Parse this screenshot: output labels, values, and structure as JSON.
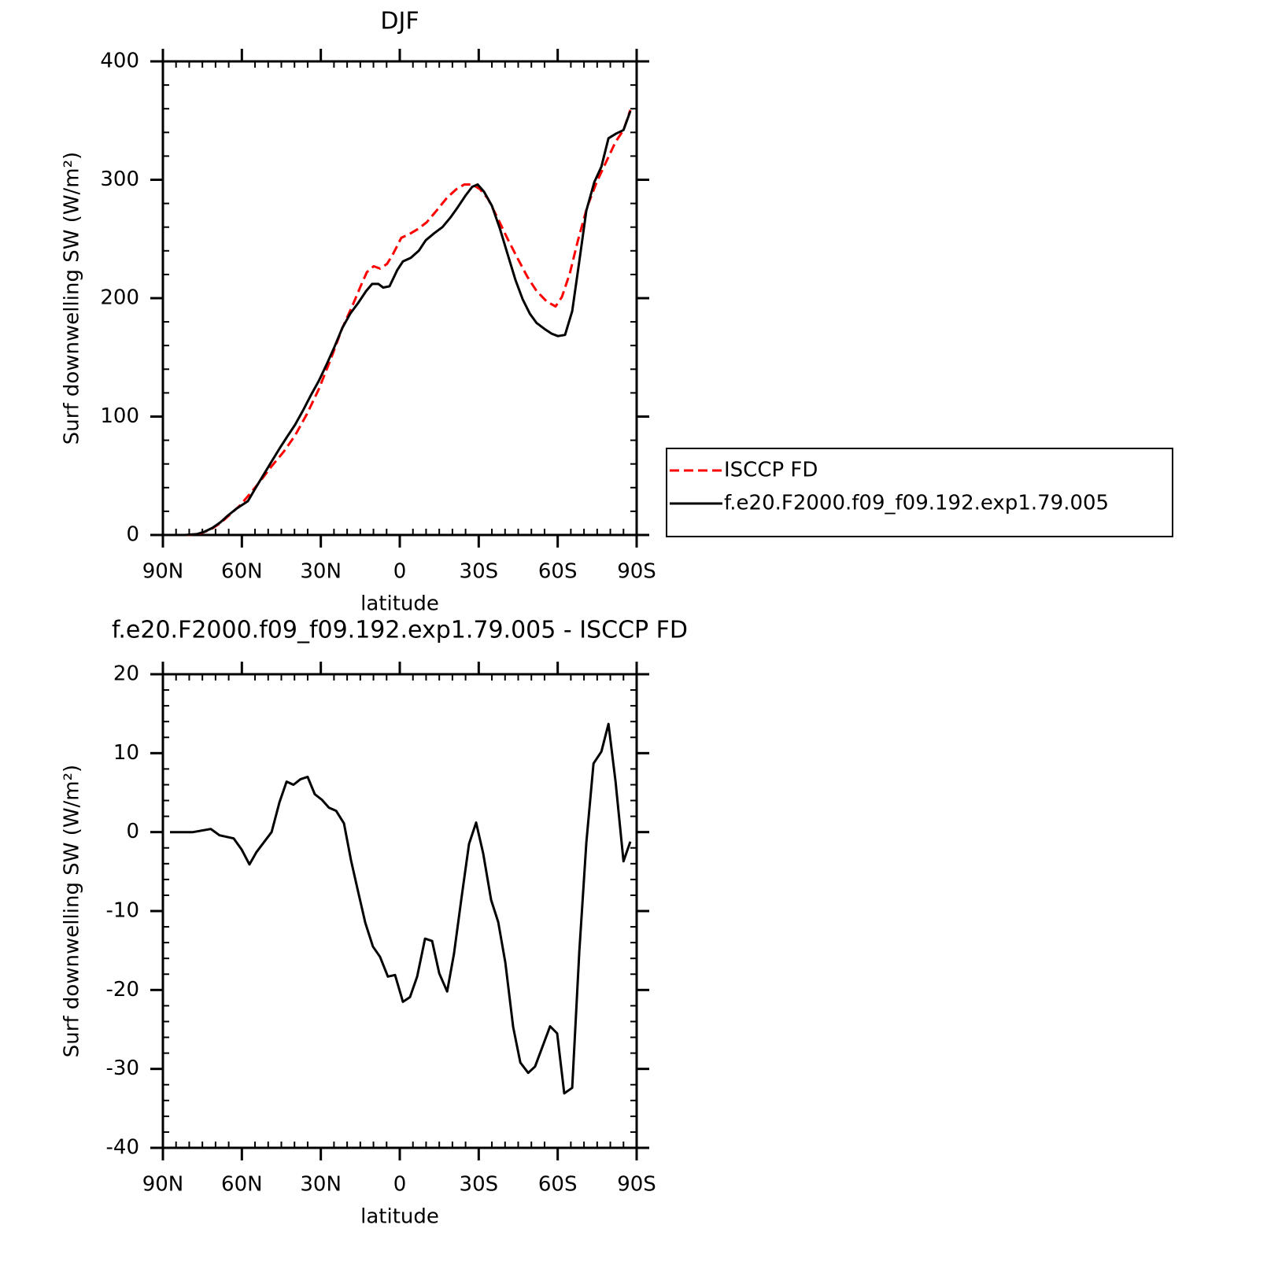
{
  "chart_data": [
    {
      "type": "line",
      "title": "DJF",
      "xlabel": "latitude",
      "ylabel": "Surf downwelling SW (W/m²)",
      "xlim": [
        90,
        -90
      ],
      "xticks": [
        {
          "value": 90,
          "label": "90N"
        },
        {
          "value": 60,
          "label": "60N"
        },
        {
          "value": 30,
          "label": "30N"
        },
        0,
        {
          "value": -30,
          "label": "30S"
        },
        {
          "value": -60,
          "label": "60S"
        },
        {
          "value": -90,
          "label": "90S"
        }
      ],
      "xminor": [
        85,
        80,
        75,
        70,
        65,
        55,
        50,
        45,
        40,
        35,
        25,
        20,
        15,
        10,
        5,
        -5,
        -10,
        -15,
        -20,
        -25,
        -35,
        -40,
        -45,
        -50,
        -55,
        -65,
        -70,
        -75,
        -80,
        -85
      ],
      "ylim": [
        0,
        400
      ],
      "yticks": [
        0,
        100,
        200,
        300,
        400
      ],
      "yminor": [
        20,
        40,
        60,
        80,
        120,
        140,
        160,
        180,
        220,
        240,
        260,
        280,
        320,
        340,
        360,
        380
      ],
      "legend": "right",
      "series": [
        {
          "name": "ISCCP FD",
          "color": "#ff0000",
          "linestyle": "dashed",
          "x": [
            87.3,
            80.1,
            75.6,
            71.8,
            68.2,
            64.6,
            60.7,
            56.8,
            53.2,
            48.7,
            44.2,
            39.8,
            35.3,
            30.8,
            26.3,
            21.8,
            17.9,
            14.9,
            12.5,
            9.9,
            7.5,
            4.8,
            2.4,
            -0.6,
            -3.6,
            -6.6,
            -10.2,
            -14.0,
            -18.0,
            -21.5,
            -24.5,
            -27.5,
            -30.5,
            -33.5,
            -37.1,
            -41.0,
            -44.9,
            -48.5,
            -52.0,
            -55.9,
            -59.2,
            -61.6,
            -64.6,
            -67.6,
            -71.2,
            -74.8,
            -78.4,
            -82.0,
            -85.0,
            -87.6
          ],
          "values": [
            0,
            0,
            1.3,
            4.7,
            10,
            17,
            25,
            35,
            45,
            58,
            70,
            84,
            102,
            123,
            148,
            175,
            194,
            210,
            222,
            227,
            225,
            229,
            238,
            251,
            254,
            258,
            264,
            274,
            285,
            292,
            296,
            296,
            292,
            284,
            268,
            250,
            233,
            218,
            206,
            197,
            193,
            201,
            221,
            248,
            277,
            298,
            315,
            332,
            342,
            359
          ]
        },
        {
          "name": "f.e20.F2000.f09_f09.192.exp1.79.005",
          "color": "#000000",
          "linestyle": "solid",
          "x": [
            87.3,
            81.6,
            77.1,
            74.2,
            71.2,
            68.2,
            65.2,
            62.2,
            57.7,
            54.7,
            51.7,
            48.7,
            45.7,
            42.8,
            39.8,
            36.8,
            33.8,
            30.8,
            27.8,
            24.8,
            21.8,
            18.8,
            15.8,
            12.8,
            10.5,
            8.1,
            6.3,
            3.9,
            0.9,
            -1.2,
            -4.2,
            -7.2,
            -9.9,
            -13.2,
            -16.2,
            -19.2,
            -22.1,
            -25.1,
            -27.5,
            -29.6,
            -32.0,
            -35.0,
            -38.0,
            -41.0,
            -44.0,
            -46.7,
            -49.4,
            -52.0,
            -55.0,
            -57.7,
            -60.1,
            -62.8,
            -65.5,
            -68.2,
            -70.9,
            -73.9,
            -76.6,
            -79.3,
            -82.2,
            -85.0,
            -87.6
          ],
          "values": [
            0,
            0,
            0.7,
            2.7,
            6,
            10.6,
            16.6,
            22,
            28.6,
            40,
            51,
            62,
            73,
            83,
            93,
            105,
            118,
            130,
            144,
            159,
            175,
            187,
            196,
            206,
            212,
            212,
            209,
            210,
            224,
            231,
            234,
            240,
            249,
            255,
            260,
            268,
            277,
            287,
            294,
            296,
            290,
            278,
            259,
            237,
            215,
            199,
            187,
            179,
            174,
            170,
            168,
            169,
            189,
            231,
            274,
            298,
            311,
            335,
            339,
            342,
            358
          ]
        }
      ]
    },
    {
      "type": "line",
      "title": "f.e20.F2000.f09_f09.192.exp1.79.005 - ISCCP FD",
      "xlabel": "latitude",
      "ylabel": "Surf downwelling SW (W/m²)",
      "xlim": [
        90,
        -90
      ],
      "xticks": [
        {
          "value": 90,
          "label": "90N"
        },
        {
          "value": 60,
          "label": "60N"
        },
        {
          "value": 30,
          "label": "30N"
        },
        0,
        {
          "value": -30,
          "label": "30S"
        },
        {
          "value": -60,
          "label": "60S"
        },
        {
          "value": -90,
          "label": "90S"
        }
      ],
      "xminor": [
        85,
        80,
        75,
        70,
        65,
        55,
        50,
        45,
        40,
        35,
        25,
        20,
        15,
        10,
        5,
        -5,
        -10,
        -15,
        -20,
        -25,
        -35,
        -40,
        -45,
        -50,
        -55,
        -65,
        -70,
        -75,
        -80,
        -85
      ],
      "ylim": [
        -40,
        20
      ],
      "yticks": [
        -40,
        -30,
        -20,
        -10,
        0,
        10,
        20
      ],
      "yminor": [
        -38,
        -36,
        -34,
        -32,
        -28,
        -26,
        -24,
        -22,
        -18,
        -16,
        -14,
        -12,
        -8,
        -6,
        -4,
        -2,
        2,
        4,
        6,
        8,
        12,
        14,
        16,
        18
      ],
      "series": [
        {
          "color": "#000000",
          "linestyle": "solid",
          "x": [
            87.3,
            78.6,
            71.8,
            68.5,
            63.1,
            60.1,
            57.1,
            54.4,
            48.7,
            45.7,
            43.0,
            40.4,
            37.7,
            35.0,
            32.3,
            29.6,
            26.9,
            24.2,
            21.2,
            18.5,
            15.8,
            13.1,
            10.2,
            7.5,
            4.5,
            1.8,
            -1.2,
            -3.9,
            -6.6,
            -9.6,
            -12.3,
            -15.0,
            -18.0,
            -20.6,
            -23.6,
            -26.3,
            -29.0,
            -31.7,
            -34.7,
            -37.4,
            -40.1,
            -43.1,
            -45.8,
            -48.8,
            -51.4,
            -57.1,
            -59.8,
            -62.5,
            -65.5,
            -68.2,
            -70.9,
            -73.6,
            -76.6,
            -79.3,
            -82.0,
            -85.0,
            -87.6
          ],
          "values": [
            0,
            0,
            0.4,
            -0.4,
            -0.8,
            -2.2,
            -4.1,
            -2.5,
            0,
            3.8,
            6.4,
            6.0,
            6.7,
            7.0,
            4.8,
            4.1,
            3.1,
            2.7,
            1.1,
            -3.6,
            -7.6,
            -11.5,
            -14.5,
            -15.8,
            -18.3,
            -18.1,
            -21.5,
            -20.9,
            -18.3,
            -13.5,
            -13.8,
            -17.9,
            -20.2,
            -15.4,
            -8.0,
            -1.5,
            1.2,
            -2.7,
            -8.6,
            -11.4,
            -16.5,
            -24.7,
            -29.2,
            -30.5,
            -29.7,
            -24.6,
            -25.5,
            -33.1,
            -32.4,
            -15.2,
            -1.3,
            8.7,
            10.2,
            13.7,
            6.4,
            -3.7,
            -1.2
          ]
        }
      ]
    }
  ]
}
